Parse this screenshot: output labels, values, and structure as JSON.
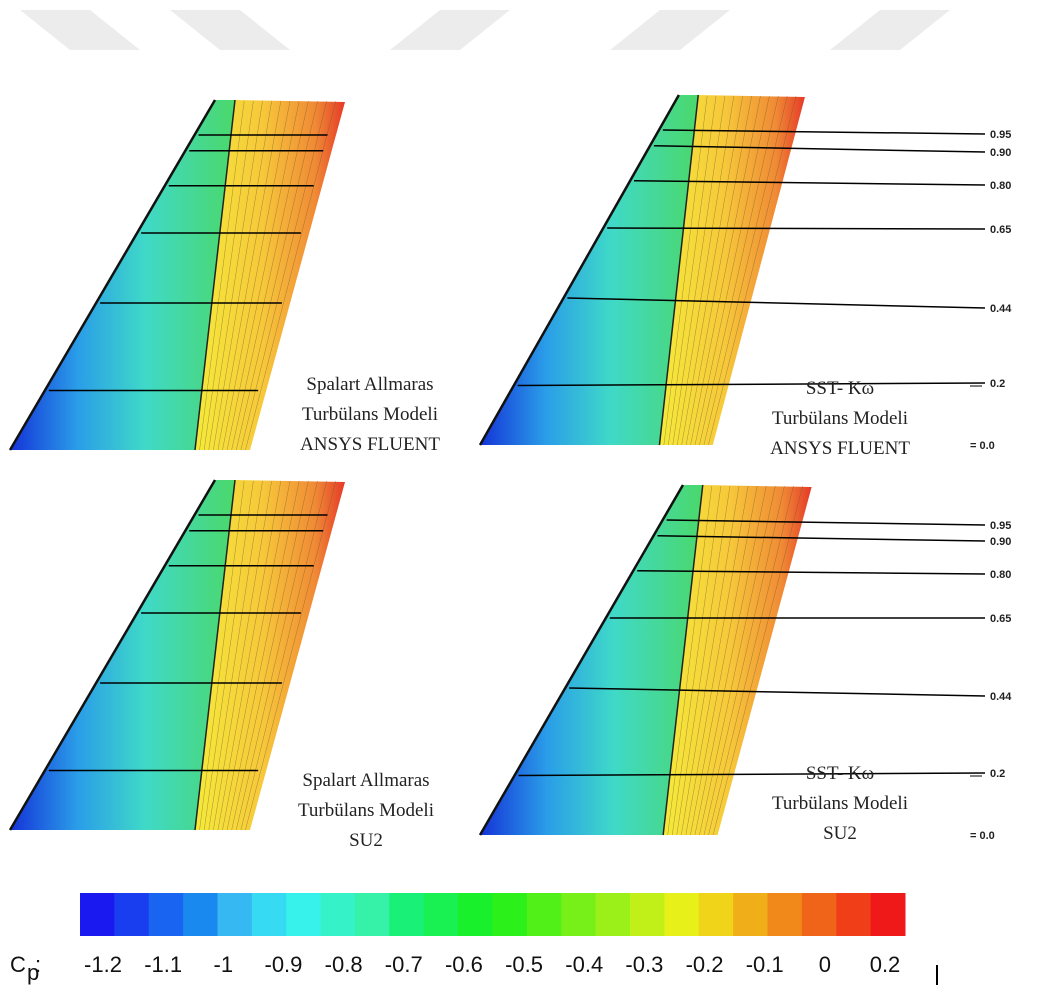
{
  "panels": [
    {
      "caption": [
        "Spalart Allmaras",
        "Turbülans Modeli",
        "ANSYS FLUENT"
      ]
    },
    {
      "caption": [
        "SST- Kω",
        "Turbülans Modeli",
        "ANSYS FLUENT"
      ]
    },
    {
      "caption": [
        "Spalart Allmaras",
        "Turbülans Modeli",
        "SU2"
      ]
    },
    {
      "caption": [
        "SST- Kω",
        "Turbülans Modeli",
        "SU2"
      ]
    }
  ],
  "stations": {
    "labels": [
      "0.95",
      "0.90",
      "0.80",
      "0.65",
      "0.44",
      "0.2",
      "= 0.0"
    ]
  },
  "colorbar": {
    "symbol": "C",
    "subscript": "p",
    "separator": ":",
    "labels": [
      "-1.2",
      "-1.1",
      "-1",
      "-0.9",
      "-0.8",
      "-0.7",
      "-0.6",
      "-0.5",
      "-0.4",
      "-0.3",
      "-0.2",
      "-0.1",
      "0",
      "0.2"
    ]
  }
}
